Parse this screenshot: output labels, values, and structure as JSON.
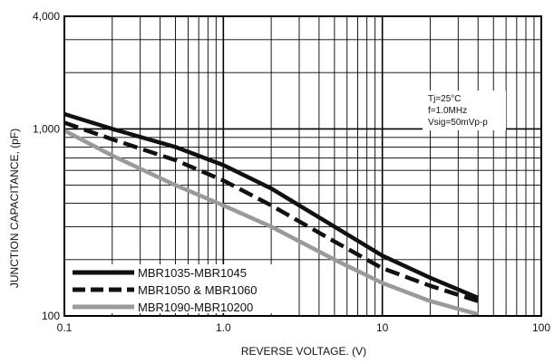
{
  "chart_data": {
    "type": "line",
    "title": "",
    "xlabel": "REVERSE VOLTAGE. (V)",
    "ylabel": "JUNCTION CAPACITANCE, (pF)",
    "x_scale": "log",
    "y_scale": "log",
    "xlim": [
      0.1,
      100
    ],
    "ylim": [
      100,
      4000
    ],
    "x_ticks": [
      0.1,
      1,
      10,
      100
    ],
    "x_tick_labels": [
      "0.1",
      "1.0",
      "10",
      "100"
    ],
    "y_ticks": [
      100,
      1000,
      4000
    ],
    "y_tick_labels": [
      "100",
      "1,000",
      "4,000"
    ],
    "grid": true,
    "legend_position": "bottom-left",
    "annotation": [
      "Tj=25°C",
      "f=1.0MHz",
      "Vsig=50mVp-p"
    ],
    "series": [
      {
        "name": "MBR1035-MBR1045",
        "color": "#111111",
        "style": "solid",
        "x": [
          0.1,
          0.2,
          0.5,
          1,
          2,
          5,
          10,
          20,
          40
        ],
        "y": [
          1200,
          1000,
          800,
          640,
          480,
          300,
          210,
          160,
          125
        ]
      },
      {
        "name": "MBR1050 & MBR1060",
        "color": "#111111",
        "style": "dashed",
        "x": [
          0.1,
          0.2,
          0.5,
          1,
          2,
          5,
          10,
          20,
          40
        ],
        "y": [
          1080,
          880,
          680,
          530,
          390,
          250,
          180,
          145,
          120
        ]
      },
      {
        "name": "MBR1090-MBR10200",
        "color": "#9a9a9a",
        "style": "solid",
        "x": [
          0.1,
          0.2,
          0.5,
          1,
          2,
          5,
          10,
          20,
          40
        ],
        "y": [
          980,
          720,
          500,
          390,
          300,
          200,
          150,
          120,
          102
        ]
      }
    ]
  }
}
